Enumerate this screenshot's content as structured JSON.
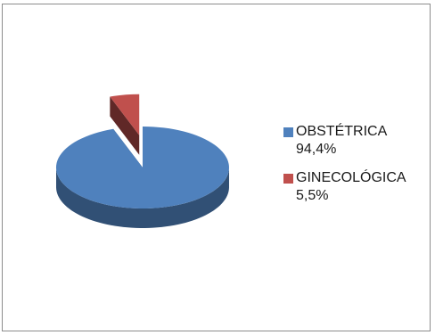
{
  "chart_data": {
    "type": "pie",
    "title": "",
    "slices": [
      {
        "label": "OBSTÉTRICA",
        "value": 94.4,
        "value_label": "94,4%",
        "color": "#4f81bd"
      },
      {
        "label": "GINECOLÓGICA",
        "value": 5.5,
        "value_label": "5,5%",
        "color": "#c0504d"
      }
    ],
    "legend_position": "right",
    "style": "3d-exploded"
  }
}
